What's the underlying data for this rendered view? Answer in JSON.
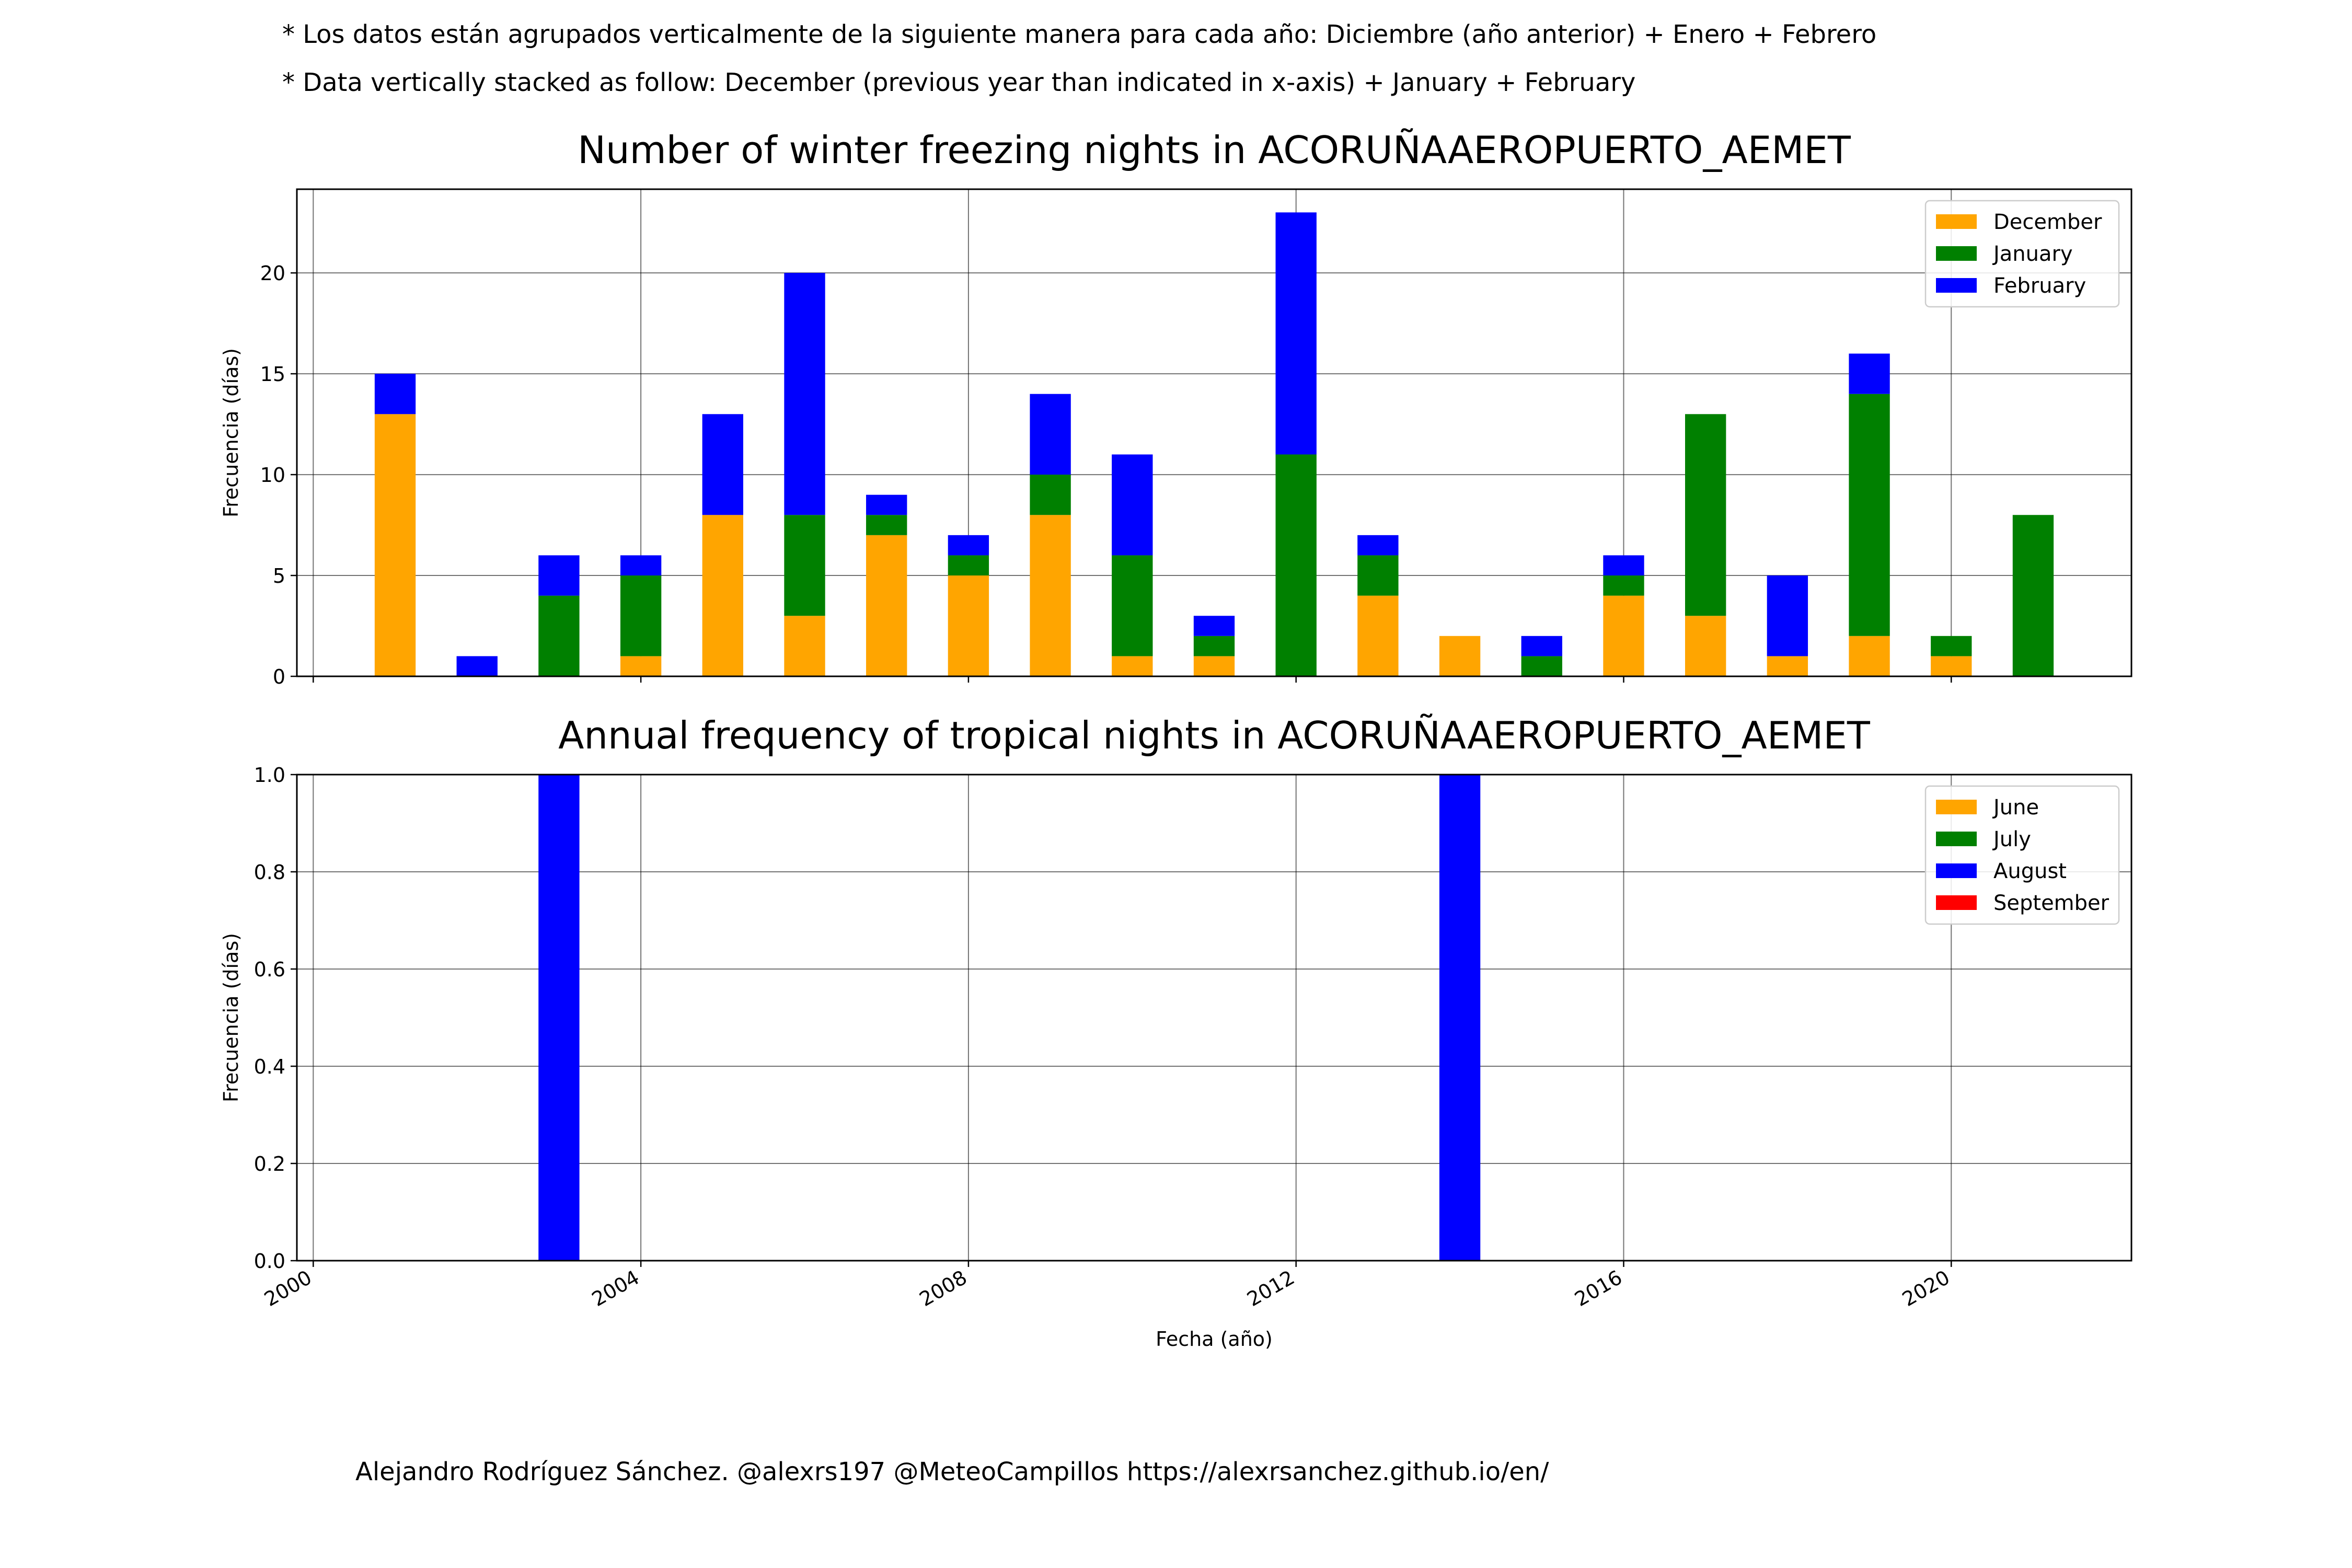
{
  "notes": {
    "line1": "* Los datos están agrupados verticalmente de la siguiente manera para cada año: Diciembre (año anterior) + Enero  + Febrero",
    "line2": "* Data vertically stacked as follow: December (previous year than indicated in x-axis) + January  + February"
  },
  "footer": "Alejandro Rodríguez Sánchez. @alexrs197 @MeteoCampillos   https://alexrsanchez.github.io/en/",
  "chart_data": [
    {
      "type": "bar",
      "stacked": true,
      "title": "Number of winter freezing nights in ACORUÑAAEROPUERTO_AEMET",
      "xlabel": "",
      "ylabel": "Frecuencia (días)",
      "x": [
        2001,
        2002,
        2003,
        2004,
        2005,
        2006,
        2007,
        2008,
        2009,
        2010,
        2011,
        2012,
        2013,
        2014,
        2015,
        2016,
        2017,
        2018,
        2019,
        2020,
        2021
      ],
      "series": [
        {
          "name": "December",
          "color": "#ffa500",
          "values": [
            13,
            0,
            0,
            1,
            8,
            3,
            7,
            5,
            8,
            1,
            1,
            0,
            4,
            2,
            0,
            4,
            3,
            1,
            2,
            1,
            0
          ]
        },
        {
          "name": "January",
          "color": "#008000",
          "values": [
            0,
            0,
            4,
            4,
            0,
            5,
            1,
            1,
            2,
            5,
            1,
            11,
            2,
            0,
            1,
            1,
            10,
            0,
            12,
            1,
            8
          ]
        },
        {
          "name": "February",
          "color": "#0000ff",
          "values": [
            2,
            1,
            2,
            1,
            5,
            12,
            1,
            1,
            4,
            5,
            1,
            12,
            1,
            0,
            1,
            1,
            0,
            4,
            2,
            0,
            0
          ]
        }
      ],
      "xlim": [
        1999.8,
        2022.2
      ],
      "ylim": [
        0,
        24.15
      ],
      "yticks": [
        0,
        5,
        10,
        15,
        20
      ],
      "grid": true,
      "legend": "top-right"
    },
    {
      "type": "bar",
      "stacked": true,
      "title": "Annual frequency of tropical nights in ACORUÑAAEROPUERTO_AEMET",
      "xlabel": "Fecha (año)",
      "ylabel": "Frecuencia (días)",
      "x": [
        2001,
        2002,
        2003,
        2004,
        2005,
        2006,
        2007,
        2008,
        2009,
        2010,
        2011,
        2012,
        2013,
        2014,
        2015,
        2016,
        2017,
        2018,
        2019,
        2020,
        2021
      ],
      "series": [
        {
          "name": "June",
          "color": "#ffa500",
          "values": [
            0,
            0,
            0,
            0,
            0,
            0,
            0,
            0,
            0,
            0,
            0,
            0,
            0,
            0,
            0,
            0,
            0,
            0,
            0,
            0,
            0
          ]
        },
        {
          "name": "July",
          "color": "#008000",
          "values": [
            0,
            0,
            0,
            0,
            0,
            0,
            0,
            0,
            0,
            0,
            0,
            0,
            0,
            0,
            0,
            0,
            0,
            0,
            0,
            0,
            0
          ]
        },
        {
          "name": "August",
          "color": "#0000ff",
          "values": [
            0,
            0,
            1,
            0,
            0,
            0,
            0,
            0,
            0,
            0,
            0,
            0,
            0,
            1,
            0,
            0,
            0,
            0,
            0,
            0,
            0
          ]
        },
        {
          "name": "September",
          "color": "#ff0000",
          "values": [
            0,
            0,
            0,
            0,
            0,
            0,
            0,
            0,
            0,
            0,
            0,
            0,
            0,
            0,
            0,
            0,
            0,
            0,
            0,
            0,
            0
          ]
        }
      ],
      "xlim": [
        1999.8,
        2022.2
      ],
      "ylim": [
        0,
        1
      ],
      "yticks": [
        "0.0",
        "0.2",
        "0.4",
        "0.6",
        "0.8",
        "1.0"
      ],
      "xticks": [
        2000,
        2004,
        2008,
        2012,
        2016,
        2020
      ],
      "xtick_rotation": -30,
      "grid": true,
      "legend": "top-right"
    }
  ]
}
